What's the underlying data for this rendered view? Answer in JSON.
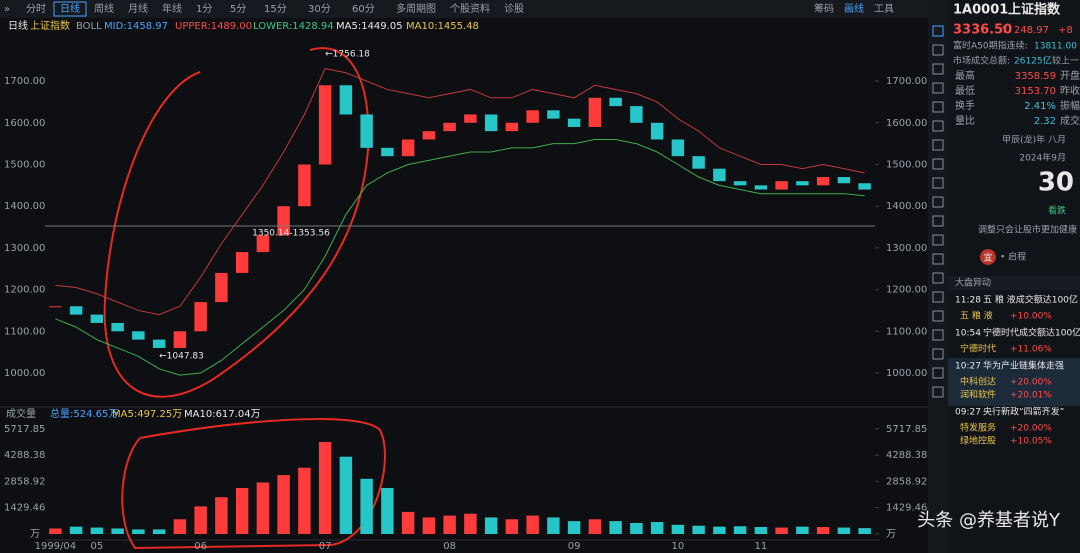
{
  "toolbar": {
    "tabs": [
      "分时",
      "日线",
      "周线",
      "月线",
      "年线",
      "1分",
      "5分",
      "15分",
      "30分",
      "60分",
      "多周期图",
      "个股资料",
      "诊股"
    ],
    "right": [
      "筹码",
      "画线",
      "工具"
    ]
  },
  "info": {
    "period": "日线",
    "name": "上证指数",
    "indicator": "BOLL",
    "mid": "MID:1458.97",
    "upper": "UPPER:1489.00",
    "lower": "LOWER:1428.94",
    "ma5": "MA5:1449.05",
    "ma10": "MA10:1455.48"
  },
  "volume_info": {
    "label": "成交量",
    "total": "总量:524.65万",
    "ma5": "MA5:497.25万",
    "ma10": "MA10:617.04万"
  },
  "chart_data": [
    {
      "type": "candlestick",
      "categories": [
        "1999/04",
        null,
        "05",
        null,
        null,
        null,
        null,
        "06",
        null,
        null,
        null,
        null,
        null,
        "07",
        null,
        null,
        null,
        null,
        null,
        "08",
        null,
        null,
        null,
        null,
        null,
        "09",
        null,
        null,
        null,
        null,
        "10",
        null,
        null,
        null,
        "11",
        null,
        null,
        null,
        null,
        null
      ],
      "values": [
        1160,
        1140,
        1120,
        1100,
        1080,
        1060,
        1100,
        1170,
        1240,
        1290,
        1330,
        1400,
        1500,
        1690,
        1620,
        1540,
        1520,
        1560,
        1580,
        1600,
        1620,
        1580,
        1600,
        1630,
        1610,
        1590,
        1660,
        1640,
        1600,
        1560,
        1520,
        1490,
        1460,
        1450,
        1440,
        1460,
        1450,
        1470,
        1455,
        1440
      ],
      "upper": [
        1210,
        1205,
        1190,
        1170,
        1150,
        1140,
        1160,
        1230,
        1310,
        1380,
        1450,
        1530,
        1620,
        1730,
        1720,
        1700,
        1680,
        1670,
        1660,
        1670,
        1680,
        1660,
        1660,
        1680,
        1670,
        1660,
        1690,
        1680,
        1670,
        1650,
        1610,
        1580,
        1540,
        1520,
        1500,
        1500,
        1490,
        1500,
        1490,
        1480
      ],
      "lower": [
        1130,
        1110,
        1080,
        1060,
        1040,
        1010,
        995,
        1000,
        1030,
        1070,
        1110,
        1150,
        1200,
        1280,
        1380,
        1450,
        1480,
        1500,
        1510,
        1520,
        1530,
        1530,
        1540,
        1540,
        1550,
        1550,
        1560,
        1560,
        1550,
        1530,
        1500,
        1470,
        1450,
        1440,
        1430,
        1430,
        1430,
        1430,
        1430,
        1425
      ],
      "up_color": "#ff3b3b",
      "down_color": "#27c6c9",
      "upper_color": "#c0393b",
      "lower_color": "#3fae4f",
      "ylim": [
        940,
        1789
      ],
      "yticks": [
        {
          "value": 1000,
          "label": "1000.00"
        },
        {
          "value": 1100,
          "label": "1100.00"
        },
        {
          "value": 1200,
          "label": "1200.00"
        },
        {
          "value": 1300,
          "label": "1300.00"
        },
        {
          "value": 1400,
          "label": "1400.00"
        },
        {
          "value": 1500,
          "label": "1500.00"
        },
        {
          "value": 1600,
          "label": "1600.00"
        },
        {
          "value": 1700,
          "label": "1700.00"
        }
      ],
      "annotations": [
        "←1756.18",
        "1350.14-1353.56",
        "←1047.83"
      ]
    },
    {
      "type": "bar",
      "values": [
        300,
        400,
        350,
        300,
        250,
        250,
        800,
        1500,
        2000,
        2500,
        2800,
        3200,
        3600,
        5000,
        4200,
        3000,
        2500,
        1200,
        900,
        1000,
        1100,
        900,
        800,
        1000,
        900,
        700,
        800,
        700,
        600,
        650,
        500,
        450,
        400,
        420,
        380,
        350,
        400,
        380,
        350,
        320
      ],
      "ylim": [
        0,
        6194
      ],
      "yticks": [
        {
          "value": 0,
          "label": "万"
        },
        1429.46,
        2858.92,
        4288.38,
        5717.85
      ]
    }
  ],
  "side": {
    "code": "1A0001",
    "name": "上证指数",
    "price": "3336.50",
    "arrow": "↑",
    "change": "248.97",
    "change_pct": "+8",
    "a50_label": "富时A50期指连续:",
    "a50": "13811.00",
    "turnover_label": "市场成交总额:",
    "turnover": "26125亿",
    "turnover_more": "较上一",
    "stats": [
      [
        "最高",
        "3358.59",
        "开盘"
      ],
      [
        "最低",
        "3153.70",
        "昨收"
      ],
      [
        "换手",
        "2.41%",
        "振幅"
      ],
      [
        "量比",
        "2.32",
        "成交"
      ]
    ],
    "lunar": "甲辰(龙)年 八月",
    "month": "2024年9月",
    "day": "30",
    "mood": "看跌",
    "tip": "调整只会让股市更加健康",
    "badge": "宜",
    "badge_text": "• 启程",
    "news_title": "大盘异动",
    "news": [
      {
        "time": "11:28",
        "text": "五 粮 液成交额达100亿",
        "stocks": [
          [
            "五 粮 液",
            "+10.00%"
          ]
        ]
      },
      {
        "time": "10:54",
        "text": "宁德时代成交额达100亿",
        "stocks": [
          [
            "宁德时代",
            "+11.06%"
          ]
        ]
      },
      {
        "time": "10:27",
        "text": "华为产业链集体走强",
        "stocks": [
          [
            "中科创达",
            "+20.00%"
          ],
          [
            "润和软件",
            "+20.01%"
          ]
        ]
      },
      {
        "time": "09:27",
        "text": "央行新政“四箭齐发”",
        "stocks": [
          [
            "特发服务",
            "+20.00%"
          ],
          [
            "绿地控股",
            "+10.05%"
          ]
        ]
      }
    ]
  },
  "watermark": "头条 @养基者说Y"
}
